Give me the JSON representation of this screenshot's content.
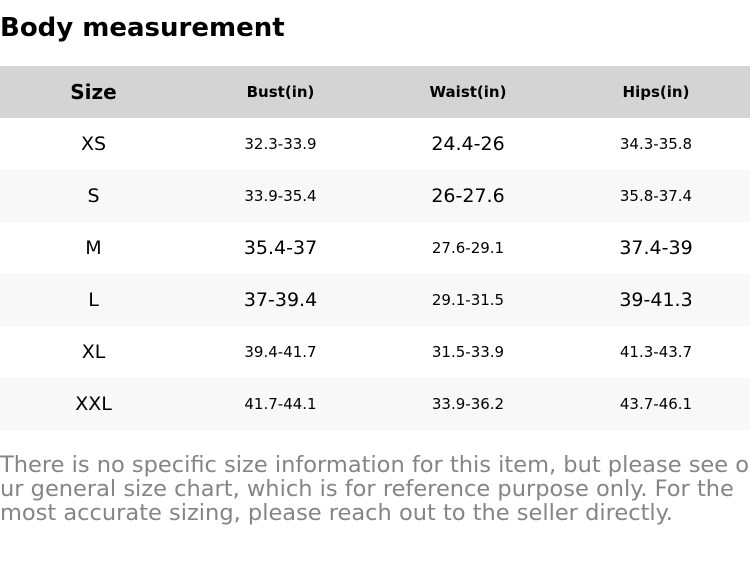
{
  "title": "Body measurement",
  "table": {
    "headers": [
      "Size",
      "Bust(in)",
      "Waist(in)",
      "Hips(in)"
    ],
    "rows": [
      [
        "XS",
        "32.3-33.9",
        "24.4-26",
        "34.3-35.8"
      ],
      [
        "S",
        "33.9-35.4",
        "26-27.6",
        "35.8-37.4"
      ],
      [
        "M",
        "35.4-37",
        "27.6-29.1",
        "37.4-39"
      ],
      [
        "L",
        "37-39.4",
        "29.1-31.5",
        "39-41.3"
      ],
      [
        "XL",
        "39.4-41.7",
        "31.5-33.9",
        "41.3-43.7"
      ],
      [
        "XXL",
        "41.7-44.1",
        "33.9-36.2",
        "43.7-46.1"
      ]
    ]
  },
  "note": "There is no specific size information for this item, but please see our general size chart, which is for reference purpose only. For the most accurate sizing, please reach out to the seller directly.",
  "colors": {
    "header_bg": "#d4d4d4",
    "alt_row_bg": "#f8f8f8",
    "note_text": "#858585"
  }
}
